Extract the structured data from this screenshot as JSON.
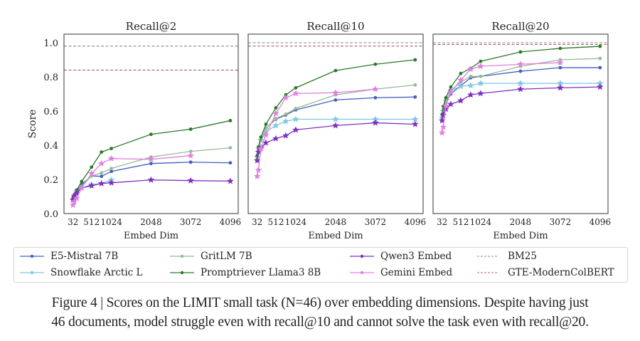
{
  "chart_data": [
    {
      "type": "line",
      "title": "Recall@2",
      "xlabel": "Embed Dim",
      "ylabel": "Score",
      "ylim": [
        0,
        1.05
      ],
      "yticks": [
        "0.0",
        "0.2",
        "0.4",
        "0.6",
        "0.8",
        "1.0"
      ],
      "xticks": [
        "32",
        "512",
        "1024",
        "2048",
        "3072",
        "4096"
      ],
      "xtick_values": [
        32,
        512,
        1024,
        2048,
        3072,
        4096
      ],
      "xlim": [
        -200,
        4300
      ],
      "grid": false,
      "series": [
        {
          "name": "E5-Mistral 7B",
          "x": [
            32,
            64,
            128,
            256,
            512,
            768,
            1024,
            2048,
            3072,
            4096
          ],
          "y": [
            0.09,
            0.11,
            0.13,
            0.17,
            0.22,
            0.218,
            0.247,
            0.293,
            0.301,
            0.297
          ]
        },
        {
          "name": "Snowflake Arctic L",
          "x": [
            32,
            64,
            128,
            256,
            512,
            768,
            1024
          ],
          "y": [
            0.08,
            0.1,
            0.13,
            0.15,
            0.17,
            0.176,
            0.197
          ]
        },
        {
          "name": "GritLM 7B",
          "x": [
            32,
            64,
            128,
            256,
            512,
            768,
            1024,
            2048,
            3072,
            4096
          ],
          "y": [
            0.08,
            0.1,
            0.12,
            0.16,
            0.22,
            0.238,
            0.264,
            0.331,
            0.364,
            0.385
          ]
        },
        {
          "name": "Promptriever Llama3 8B",
          "x": [
            32,
            64,
            128,
            256,
            512,
            768,
            1024,
            2048,
            3072,
            4096
          ],
          "y": [
            0.09,
            0.11,
            0.138,
            0.188,
            0.272,
            0.36,
            0.381,
            0.464,
            0.494,
            0.544
          ]
        },
        {
          "name": "Qwen3 Embed",
          "x": [
            32,
            64,
            128,
            256,
            512,
            768,
            1024,
            2048,
            3072,
            4096
          ],
          "y": [
            0.08,
            0.1,
            0.12,
            0.15,
            0.163,
            0.176,
            0.18,
            0.197,
            0.193,
            0.19
          ]
        },
        {
          "name": "Gemini Embed",
          "x": [
            32,
            64,
            128,
            256,
            512,
            768,
            1024,
            2048,
            3072
          ],
          "y": [
            0.05,
            0.07,
            0.09,
            0.15,
            0.234,
            0.293,
            0.322,
            0.318,
            0.339
          ]
        }
      ],
      "hlines": [
        {
          "name": "BM25",
          "y": 0.98
        },
        {
          "name": "GTE-ModernColBERT",
          "y": 0.84
        }
      ]
    },
    {
      "type": "line",
      "title": "Recall@10",
      "xlabel": "Embed Dim",
      "ylabel": "",
      "ylim": [
        0,
        1.05
      ],
      "xticks": [
        "32",
        "512",
        "1024",
        "2048",
        "3072",
        "4096"
      ],
      "xtick_values": [
        32,
        512,
        1024,
        2048,
        3072,
        4096
      ],
      "xlim": [
        -200,
        4300
      ],
      "grid": false,
      "series": [
        {
          "name": "E5-Mistral 7B",
          "x": [
            32,
            64,
            128,
            256,
            512,
            768,
            1024,
            2048,
            3072,
            4096
          ],
          "y": [
            0.33,
            0.38,
            0.43,
            0.5,
            0.552,
            0.577,
            0.607,
            0.665,
            0.678,
            0.682
          ]
        },
        {
          "name": "Snowflake Arctic L",
          "x": [
            32,
            64,
            128,
            256,
            512,
            768,
            1024,
            2048,
            3072,
            4096
          ],
          "y": [
            0.33,
            0.38,
            0.43,
            0.48,
            0.515,
            0.54,
            0.552,
            0.552,
            0.552,
            0.552
          ]
        },
        {
          "name": "GritLM 7B",
          "x": [
            32,
            64,
            128,
            256,
            512,
            768,
            1024,
            2048,
            3072,
            4096
          ],
          "y": [
            0.32,
            0.37,
            0.43,
            0.5,
            0.556,
            0.582,
            0.615,
            0.695,
            0.728,
            0.753
          ]
        },
        {
          "name": "Promptriever Llama3 8B",
          "x": [
            32,
            64,
            128,
            256,
            512,
            768,
            1024,
            2048,
            3072,
            4096
          ],
          "y": [
            0.34,
            0.39,
            0.448,
            0.523,
            0.619,
            0.695,
            0.736,
            0.837,
            0.874,
            0.9
          ]
        },
        {
          "name": "Qwen3 Embed",
          "x": [
            32,
            64,
            128,
            256,
            512,
            768,
            1024,
            2048,
            3072,
            4096
          ],
          "y": [
            0.31,
            0.36,
            0.385,
            0.414,
            0.439,
            0.456,
            0.49,
            0.515,
            0.531,
            0.523
          ]
        },
        {
          "name": "Gemini Embed",
          "x": [
            32,
            64,
            128,
            256,
            512,
            768,
            1024,
            2048,
            3072
          ],
          "y": [
            0.218,
            0.255,
            0.38,
            0.46,
            0.586,
            0.678,
            0.703,
            0.707,
            0.728
          ]
        }
      ],
      "hlines": [
        {
          "name": "BM25",
          "y": 1.0
        },
        {
          "name": "GTE-ModernColBERT",
          "y": 0.98
        }
      ]
    },
    {
      "type": "line",
      "title": "Recall@20",
      "xlabel": "Embed Dim",
      "ylabel": "",
      "ylim": [
        0,
        1.05
      ],
      "xticks": [
        "32",
        "512",
        "1024",
        "2048",
        "3072",
        "4096"
      ],
      "xtick_values": [
        32,
        512,
        1024,
        2048,
        3072,
        4096
      ],
      "xlim": [
        -200,
        4300
      ],
      "grid": false,
      "series": [
        {
          "name": "E5-Mistral 7B",
          "x": [
            32,
            64,
            128,
            256,
            512,
            768,
            1024,
            2048,
            3072,
            4096
          ],
          "y": [
            0.56,
            0.6,
            0.65,
            0.7,
            0.749,
            0.795,
            0.803,
            0.833,
            0.854,
            0.854
          ]
        },
        {
          "name": "Snowflake Arctic L",
          "x": [
            32,
            64,
            128,
            256,
            512,
            768,
            1024,
            2048,
            3072,
            4096
          ],
          "y": [
            0.56,
            0.6,
            0.66,
            0.72,
            0.745,
            0.749,
            0.762,
            0.762,
            0.762,
            0.762
          ]
        },
        {
          "name": "GritLM 7B",
          "x": [
            32,
            64,
            128,
            256,
            512,
            768,
            1024,
            2048,
            3072,
            4096
          ],
          "y": [
            0.56,
            0.61,
            0.66,
            0.72,
            0.77,
            0.803,
            0.803,
            0.862,
            0.9,
            0.908
          ]
        },
        {
          "name": "Promptriever Llama3 8B",
          "x": [
            32,
            64,
            128,
            256,
            512,
            768,
            1024,
            2048,
            3072,
            4096
          ],
          "y": [
            0.58,
            0.628,
            0.678,
            0.741,
            0.82,
            0.85,
            0.891,
            0.946,
            0.967,
            0.979
          ]
        },
        {
          "name": "Qwen3 Embed",
          "x": [
            32,
            64,
            128,
            256,
            512,
            768,
            1024,
            2048,
            3072,
            4096
          ],
          "y": [
            0.544,
            0.577,
            0.611,
            0.64,
            0.661,
            0.695,
            0.703,
            0.728,
            0.736,
            0.741
          ]
        },
        {
          "name": "Gemini Embed",
          "x": [
            32,
            64,
            128,
            256,
            512,
            768,
            1024,
            2048,
            3072
          ],
          "y": [
            0.473,
            0.506,
            0.63,
            0.71,
            0.782,
            0.845,
            0.862,
            0.874,
            0.883
          ]
        }
      ],
      "hlines": [
        {
          "name": "BM25",
          "y": 1.0
        },
        {
          "name": "GTE-ModernColBERT",
          "y": 0.99
        }
      ]
    }
  ],
  "legend": {
    "placement": "bottom",
    "entries": [
      {
        "label": "E5-Mistral 7B",
        "color": "#4060c0",
        "marker": "circle",
        "style": "solid"
      },
      {
        "label": "Snowflake Arctic L",
        "color": "#80c8e0",
        "marker": "star",
        "style": "solid"
      },
      {
        "label": "GritLM 7B",
        "color": "#98b898",
        "marker": "circle",
        "style": "solid"
      },
      {
        "label": "Promptriever Llama3 8B",
        "color": "#2a7a2a",
        "marker": "circle",
        "style": "solid"
      },
      {
        "label": "Qwen3 Embed",
        "color": "#8030c0",
        "marker": "star",
        "style": "solid"
      },
      {
        "label": "Gemini Embed",
        "color": "#e080e0",
        "marker": "star",
        "style": "solid"
      },
      {
        "label": "BM25",
        "color": "#888888",
        "marker": "none",
        "style": "dashed"
      },
      {
        "label": "GTE-ModernColBERT",
        "color": "#b06060",
        "marker": "none",
        "style": "dashed"
      }
    ]
  },
  "caption": {
    "line1": "Figure 4 | Scores on the LIMIT small task (N=46) over embedding dimensions. Despite having just",
    "line2": "46 documents, model struggle even with recall@10 and cannot solve the task even with recall@20."
  }
}
